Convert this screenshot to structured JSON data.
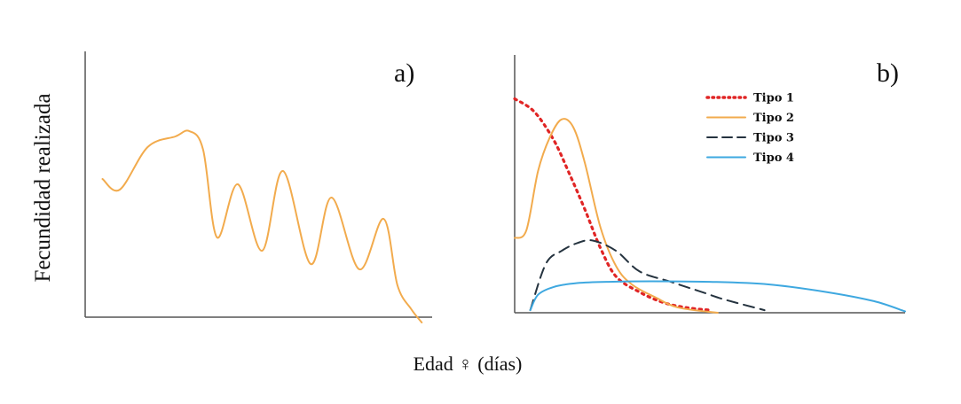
{
  "figure": {
    "ylabel": "Fecundidad realizada",
    "xlabel": "Edad ♀ (días)"
  },
  "chart_data": [
    {
      "type": "line",
      "panel_label": "a)",
      "title": "",
      "xlabel": "",
      "ylabel": "",
      "xlim": [
        0,
        100
      ],
      "ylim": [
        0,
        100
      ],
      "grid": false,
      "legend": "none",
      "series": [
        {
          "color": "#f2ab4d",
          "style": "solid",
          "x": [
            5,
            10,
            18,
            26,
            30,
            34,
            38,
            44,
            51,
            57,
            65,
            71,
            79,
            86,
            90,
            94,
            97
          ],
          "y": [
            52,
            48,
            64,
            68,
            70,
            63,
            30,
            50,
            25,
            55,
            20,
            45,
            18,
            37,
            12,
            3,
            -2
          ]
        }
      ]
    },
    {
      "type": "line",
      "panel_label": "b)",
      "title": "",
      "xlabel": "",
      "ylabel": "",
      "xlim": [
        0,
        100
      ],
      "ylim": [
        0,
        100
      ],
      "grid": false,
      "legend": "top-right",
      "series": [
        {
          "name": "Tipo 1",
          "color": "#e02525",
          "style": "dotted",
          "x": [
            0,
            5,
            10,
            14,
            18,
            22,
            26,
            32,
            38,
            44,
            50
          ],
          "y": [
            83,
            78,
            67,
            54,
            40,
            25,
            14,
            8,
            4,
            2,
            1
          ]
        },
        {
          "name": "Tipo 2",
          "color": "#f2ab4d",
          "style": "solid",
          "x": [
            0,
            3,
            6,
            9,
            12,
            15,
            18,
            22,
            26,
            30,
            36,
            42,
            52
          ],
          "y": [
            29,
            32,
            55,
            68,
            75,
            72,
            58,
            33,
            18,
            11,
            6,
            2,
            0
          ]
        },
        {
          "name": "Tipo 3",
          "color": "#25333f",
          "style": "dashed",
          "x": [
            4,
            8,
            12,
            16,
            20,
            26,
            32,
            40,
            48,
            54,
            64
          ],
          "y": [
            1,
            19,
            24,
            27,
            28,
            24,
            16,
            12,
            8,
            5,
            1
          ]
        },
        {
          "name": "Tipo 4",
          "color": "#3ea8e0",
          "style": "solid",
          "x": [
            4,
            6,
            10,
            16,
            24,
            35,
            50,
            65,
            80,
            92,
            100
          ],
          "y": [
            1,
            7,
            10,
            11.5,
            12,
            12.2,
            12,
            11,
            8,
            4.5,
            0.5
          ]
        }
      ]
    }
  ]
}
